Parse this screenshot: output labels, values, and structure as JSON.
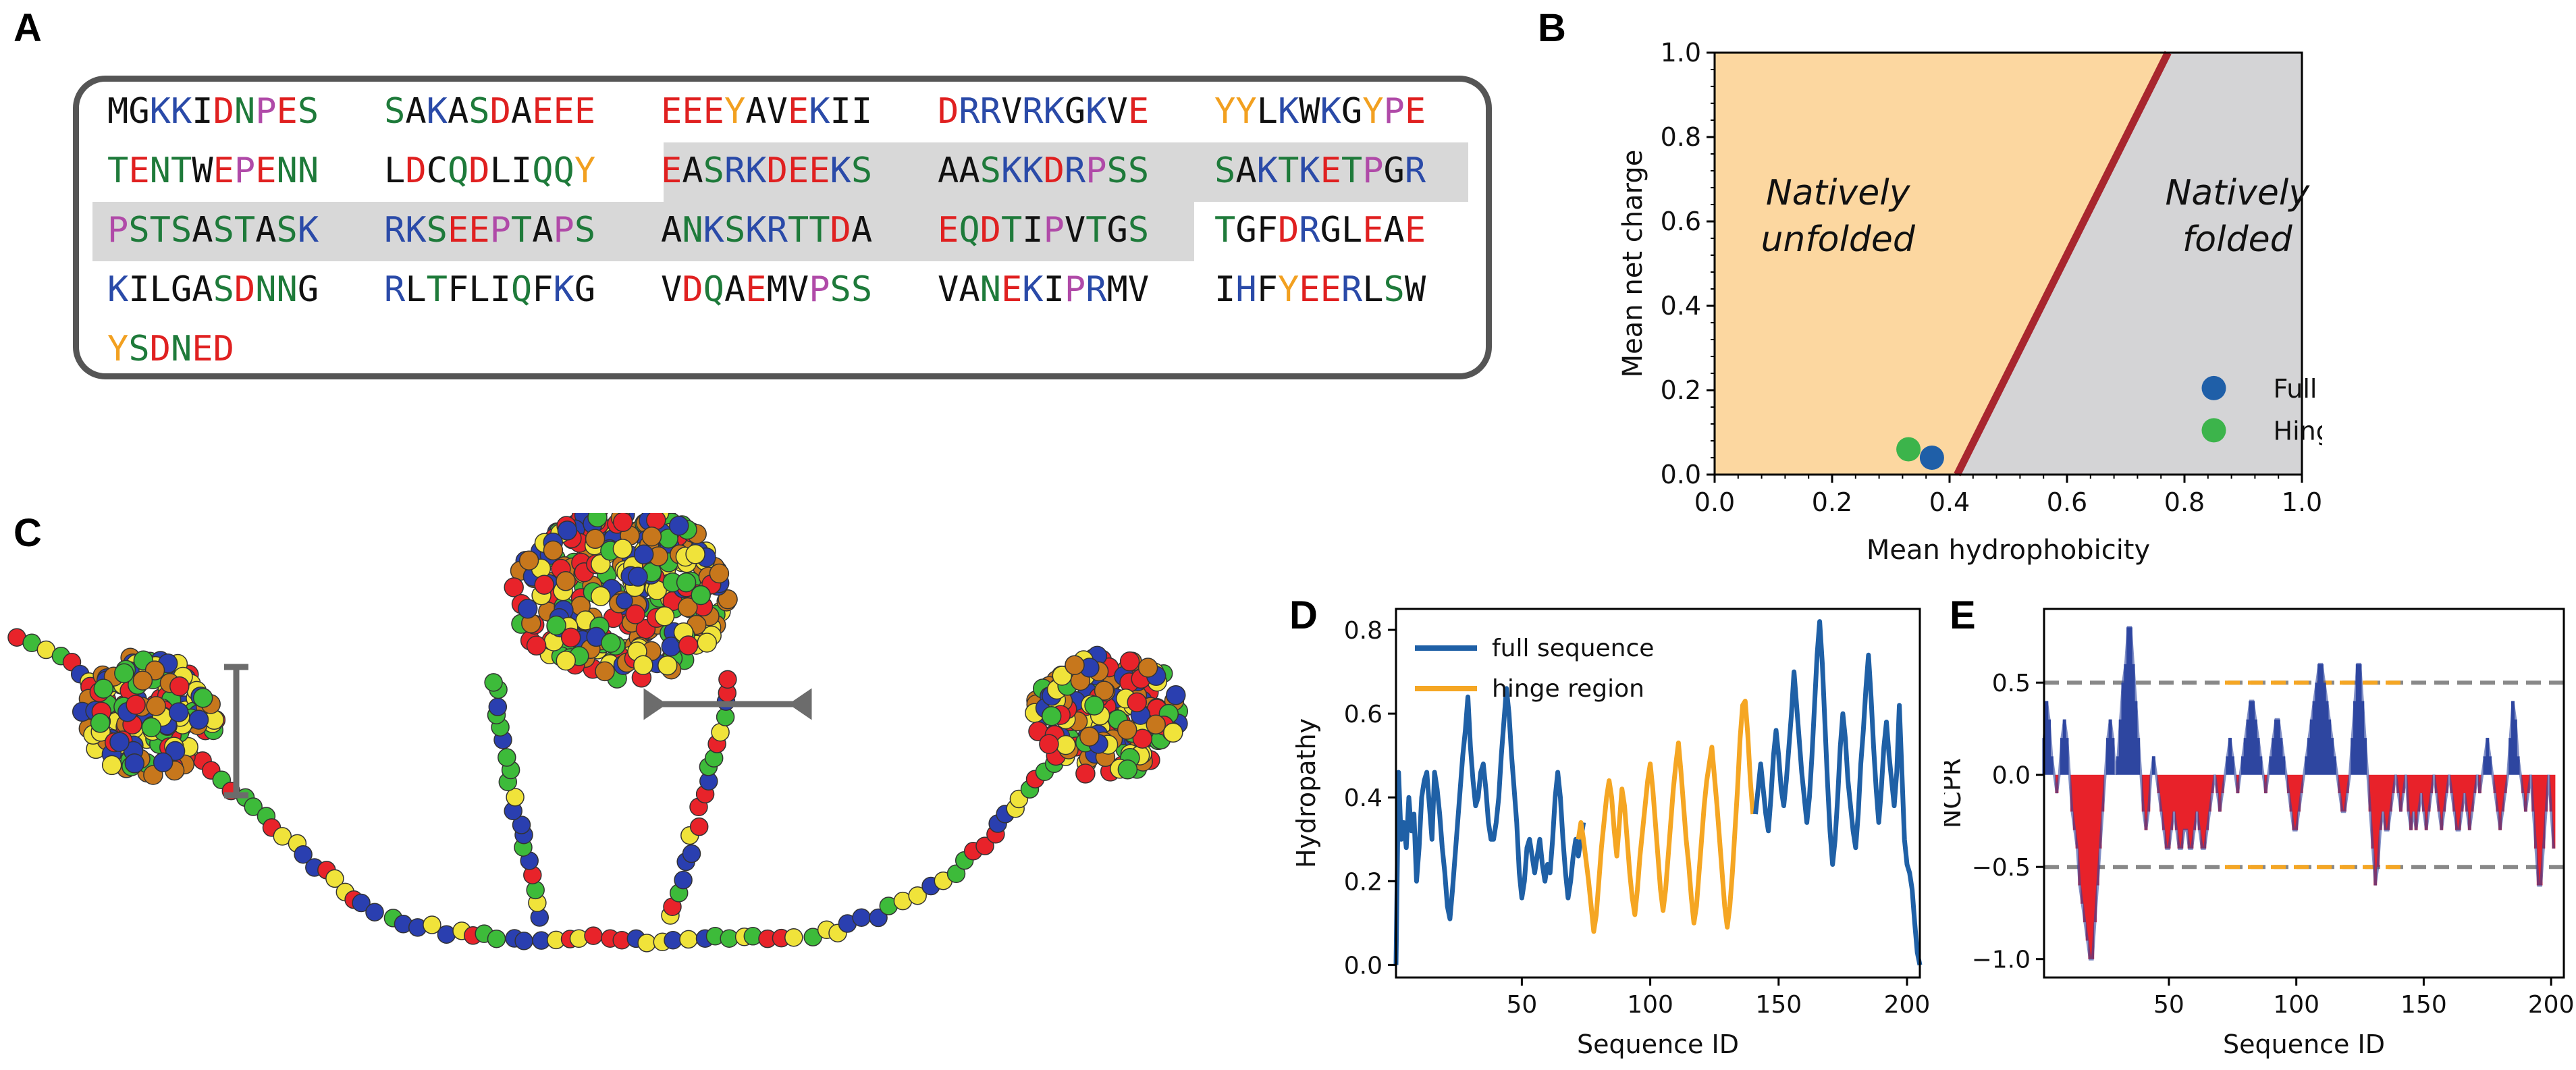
{
  "panels": {
    "A": "A",
    "B": "B",
    "C": "C",
    "D": "D",
    "E": "E"
  },
  "colors": {
    "aa_black": "#111111",
    "aa_red": "#e02020",
    "aa_blue": "#2a4aa8",
    "aa_green": "#1e7a3a",
    "aa_orange": "#f2a020",
    "aa_purple": "#b04aa8",
    "highlight": "#d8d8d8",
    "unfolded_bg": "#fcd7a0",
    "folded_bg": "#d4d4d6",
    "boundary": "#a8262e",
    "full_seq": "#1f5fa8",
    "hinge_seq": "#3cb44b",
    "full_line": "#1f60a6",
    "hinge_line": "#f5a623",
    "ncpr_pos": "#2e46a0",
    "ncpr_neg": "#e8222a",
    "ref_line": "#888888"
  },
  "sequence": {
    "residue_colors": {
      "M": "black",
      "G": "black",
      "A": "black",
      "V": "black",
      "L": "black",
      "I": "black",
      "F": "black",
      "W": "black",
      "C": "black",
      "D": "red",
      "E": "red",
      "K": "blue",
      "R": "blue",
      "H": "blue",
      "N": "green",
      "Q": "green",
      "S": "green",
      "T": "green",
      "P": "purple",
      "Y": "orange"
    },
    "rows": [
      [
        "MGKKIDNPES",
        "SAKASDAEEE",
        "EEEYAVEKII",
        "DRRVRKGKVE",
        "YYLKWKGYPE"
      ],
      [
        "TENTWEPENN",
        "LDCQDLIQQY",
        "EASRKDEEKS",
        "AASKKDRPSS",
        "SAKTKETPGR"
      ],
      [
        "PSTSASTASK",
        "RKSEEPTAPS",
        "ANKSKRTTDA",
        "EQDTIPVTGS",
        "TGFDRGLEAE"
      ],
      [
        "KILGASDNNG",
        "RLTFLIQFKG",
        "VDQAEMVPSS",
        "VANEKIPRMV",
        "IHFYEERLSW"
      ],
      [
        "YSDNED"
      ]
    ]
  },
  "chart_data": [
    {
      "panel": "B",
      "type": "scatter",
      "title": "",
      "xlabel": "Mean hydrophobicity",
      "ylabel": "Mean net charge",
      "xlim": [
        0,
        1
      ],
      "ylim": [
        0,
        1
      ],
      "xticks": [
        "0.0",
        "0.2",
        "0.4",
        "0.6",
        "0.8",
        "1.0"
      ],
      "yticks": [
        "0.0",
        "0.2",
        "0.4",
        "0.6",
        "0.8",
        "1.0"
      ],
      "regions": [
        {
          "label_line1": "Natively",
          "label_line2": "unfolded"
        },
        {
          "label_line1": "Natively",
          "label_line2": "folded"
        }
      ],
      "boundary": {
        "x": [
          0.413,
          0.772
        ],
        "y": [
          0,
          1
        ]
      },
      "series": [
        {
          "name": "Full seq",
          "x": [
            0.37
          ],
          "y": [
            0.04
          ]
        },
        {
          "name": "Hinge seq",
          "x": [
            0.33
          ],
          "y": [
            0.06
          ]
        }
      ],
      "legend_position": "bottom-right"
    },
    {
      "panel": "D",
      "type": "line",
      "xlabel": "Sequence ID",
      "ylabel": "Hydropathy",
      "xlim": [
        1,
        205
      ],
      "ylim": [
        -0.03,
        0.85
      ],
      "xticks": [
        "50",
        "100",
        "150",
        "200"
      ],
      "yticks": [
        "0.0",
        "0.2",
        "0.4",
        "0.6",
        "0.8"
      ],
      "legend_position": "top-left",
      "series": [
        {
          "name": "full sequence",
          "x_start": 1,
          "values": [
            0.0,
            0.46,
            0.3,
            0.34,
            0.28,
            0.4,
            0.32,
            0.36,
            0.2,
            0.28,
            0.4,
            0.44,
            0.46,
            0.38,
            0.3,
            0.46,
            0.42,
            0.36,
            0.28,
            0.22,
            0.14,
            0.11,
            0.18,
            0.26,
            0.34,
            0.42,
            0.5,
            0.56,
            0.64,
            0.52,
            0.44,
            0.38,
            0.4,
            0.46,
            0.48,
            0.42,
            0.34,
            0.3,
            0.3,
            0.34,
            0.4,
            0.5,
            0.58,
            0.66,
            0.6,
            0.5,
            0.42,
            0.34,
            0.22,
            0.16,
            0.2,
            0.28,
            0.3,
            0.26,
            0.22,
            0.26,
            0.3,
            0.24,
            0.2,
            0.24,
            0.22,
            0.3,
            0.4,
            0.46,
            0.4,
            0.3,
            0.22,
            0.16,
            0.2,
            0.26,
            0.3,
            0.26,
            0.3,
            0.34
          ]
        },
        {
          "name": "hinge region",
          "x_start": 72,
          "values": [
            0.3,
            0.34,
            0.3,
            0.25,
            0.2,
            0.14,
            0.08,
            0.12,
            0.2,
            0.28,
            0.34,
            0.4,
            0.44,
            0.4,
            0.32,
            0.26,
            0.34,
            0.42,
            0.38,
            0.3,
            0.22,
            0.16,
            0.12,
            0.18,
            0.26,
            0.32,
            0.38,
            0.44,
            0.48,
            0.42,
            0.34,
            0.26,
            0.18,
            0.13,
            0.18,
            0.26,
            0.34,
            0.42,
            0.48,
            0.53,
            0.46,
            0.38,
            0.3,
            0.24,
            0.16,
            0.1,
            0.14,
            0.22,
            0.3,
            0.38,
            0.44,
            0.48,
            0.52,
            0.45,
            0.38,
            0.3,
            0.22,
            0.14,
            0.09,
            0.14,
            0.22,
            0.32,
            0.42,
            0.54,
            0.62,
            0.63,
            0.55,
            0.44,
            0.36
          ]
        },
        {
          "name": "full sequence tail",
          "x_start": 141,
          "values": [
            0.36,
            0.42,
            0.48,
            0.42,
            0.36,
            0.32,
            0.4,
            0.5,
            0.56,
            0.5,
            0.42,
            0.38,
            0.44,
            0.52,
            0.6,
            0.7,
            0.62,
            0.54,
            0.46,
            0.4,
            0.34,
            0.4,
            0.5,
            0.62,
            0.74,
            0.82,
            0.72,
            0.58,
            0.44,
            0.32,
            0.24,
            0.3,
            0.4,
            0.52,
            0.6,
            0.54,
            0.44,
            0.38,
            0.32,
            0.28,
            0.36,
            0.48,
            0.56,
            0.66,
            0.74,
            0.64,
            0.52,
            0.42,
            0.34,
            0.42,
            0.52,
            0.58,
            0.5,
            0.44,
            0.38,
            0.46,
            0.62,
            0.46,
            0.3,
            0.24,
            0.22,
            0.18,
            0.1,
            0.03,
            0.0
          ]
        }
      ]
    },
    {
      "panel": "E",
      "type": "line",
      "xlabel": "Sequence ID",
      "ylabel": "NCPR",
      "xlim": [
        1,
        205
      ],
      "ylim": [
        -1.1,
        0.9
      ],
      "xticks": [
        "50",
        "100",
        "150",
        "200"
      ],
      "yticks": [
        "0.5",
        "0.0",
        "−0.5",
        "−1.0"
      ],
      "reference_lines": [
        0.5,
        -0.5
      ],
      "hinge_range": [
        72,
        141
      ],
      "x_start": 1,
      "values": [
        0.2,
        0.4,
        0.3,
        0.1,
        0.0,
        -0.1,
        0.0,
        0.2,
        0.3,
        0.2,
        0.0,
        -0.2,
        -0.3,
        -0.4,
        -0.6,
        -0.7,
        -0.8,
        -0.9,
        -1.0,
        -1.0,
        -0.8,
        -0.6,
        -0.4,
        -0.2,
        0.0,
        0.2,
        0.3,
        0.2,
        0.0,
        0.1,
        0.3,
        0.5,
        0.6,
        0.8,
        0.8,
        0.6,
        0.4,
        0.2,
        0.0,
        -0.2,
        -0.3,
        -0.2,
        0.0,
        0.1,
        0.0,
        -0.1,
        -0.2,
        -0.3,
        -0.4,
        -0.4,
        -0.3,
        -0.2,
        -0.3,
        -0.4,
        -0.4,
        -0.3,
        -0.3,
        -0.4,
        -0.4,
        -0.3,
        -0.2,
        -0.3,
        -0.4,
        -0.4,
        -0.3,
        -0.2,
        -0.1,
        0.0,
        -0.1,
        -0.2,
        -0.1,
        0.0,
        0.1,
        0.2,
        0.1,
        0.0,
        -0.1,
        0.0,
        0.1,
        0.2,
        0.3,
        0.4,
        0.4,
        0.3,
        0.2,
        0.1,
        0.0,
        -0.1,
        0.0,
        0.1,
        0.2,
        0.3,
        0.3,
        0.2,
        0.1,
        0.0,
        -0.1,
        -0.2,
        -0.3,
        -0.3,
        -0.2,
        -0.1,
        0.0,
        0.1,
        0.2,
        0.3,
        0.4,
        0.5,
        0.6,
        0.6,
        0.5,
        0.4,
        0.3,
        0.2,
        0.1,
        0.0,
        -0.1,
        -0.2,
        -0.2,
        -0.1,
        0.0,
        0.2,
        0.4,
        0.6,
        0.6,
        0.4,
        0.2,
        0.0,
        -0.2,
        -0.4,
        -0.6,
        -0.5,
        -0.3,
        -0.2,
        -0.3,
        -0.3,
        -0.2,
        -0.1,
        0.0,
        -0.1,
        -0.2,
        -0.1,
        0.0,
        -0.2,
        -0.3,
        -0.2,
        -0.3,
        -0.2,
        -0.1,
        -0.2,
        -0.3,
        -0.2,
        -0.1,
        0.0,
        -0.1,
        -0.2,
        -0.3,
        -0.2,
        -0.1,
        0.0,
        -0.1,
        -0.2,
        -0.3,
        -0.3,
        -0.2,
        -0.1,
        -0.2,
        -0.3,
        -0.2,
        -0.1,
        0.0,
        -0.1,
        0.0,
        0.1,
        0.2,
        0.1,
        0.0,
        -0.1,
        -0.2,
        -0.3,
        -0.2,
        -0.1,
        0.0,
        0.2,
        0.4,
        0.3,
        0.1,
        0.0,
        -0.1,
        -0.2,
        -0.1,
        0.0,
        -0.2,
        -0.4,
        -0.6,
        -0.6,
        -0.4,
        -0.2,
        0.0,
        -0.2,
        -0.4
      ]
    }
  ]
}
